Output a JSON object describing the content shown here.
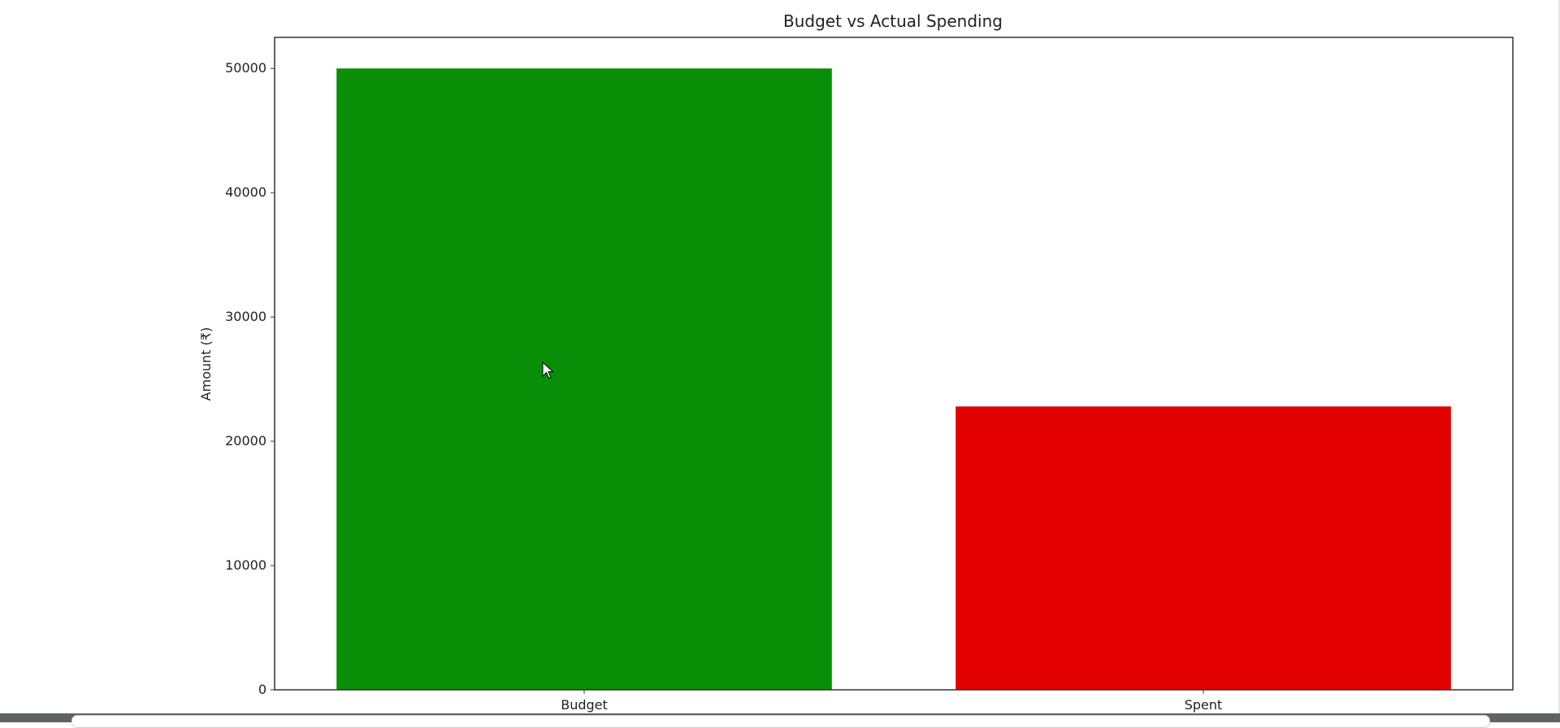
{
  "chart_data": {
    "type": "bar",
    "title": "Budget vs Actual Spending",
    "xlabel": "",
    "ylabel": "Amount (₹)",
    "categories": [
      "Budget",
      "Spent"
    ],
    "values": [
      50000,
      22800
    ],
    "colors": [
      "#088f07",
      "#e30000"
    ],
    "ylim": [
      0,
      52500
    ],
    "yticks": [
      0,
      10000,
      20000,
      30000,
      40000,
      50000
    ],
    "grid": false,
    "legend": "none"
  }
}
